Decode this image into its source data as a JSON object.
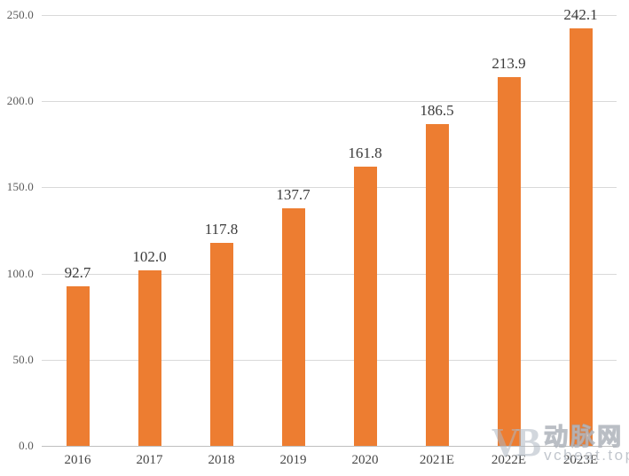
{
  "chart_data": {
    "type": "bar",
    "title": "",
    "xlabel": "",
    "ylabel": "",
    "categories": [
      "2016",
      "2017",
      "2018",
      "2019",
      "2020",
      "2021E",
      "2022E",
      "2023E"
    ],
    "values": [
      92.7,
      102.0,
      117.8,
      137.7,
      161.8,
      186.5,
      213.9,
      242.1
    ],
    "data_labels": [
      "92.7",
      "102.0",
      "117.8",
      "137.7",
      "161.8",
      "186.5",
      "213.9",
      "242.1"
    ],
    "ylim": [
      0,
      250
    ],
    "y_tick_step": 50,
    "y_tick_labels": [
      "0.0",
      "50.0",
      "100.0",
      "150.0",
      "200.0",
      "250.0"
    ],
    "grid": "horizontal",
    "legend": "none",
    "bar_color": "#ED7D31"
  },
  "colors": {
    "bar": "#ED7D31",
    "gridline": "#D9D9D9",
    "axis_line": "#BFBFBF",
    "y_tick_label": "#595959",
    "x_tick_label": "#464646",
    "data_label": "#3B3B3B",
    "background": "#FFFFFF"
  },
  "watermark": {
    "logo_text": "VB",
    "cn_text": "动脉网",
    "en_text": "vcbeat.top"
  }
}
